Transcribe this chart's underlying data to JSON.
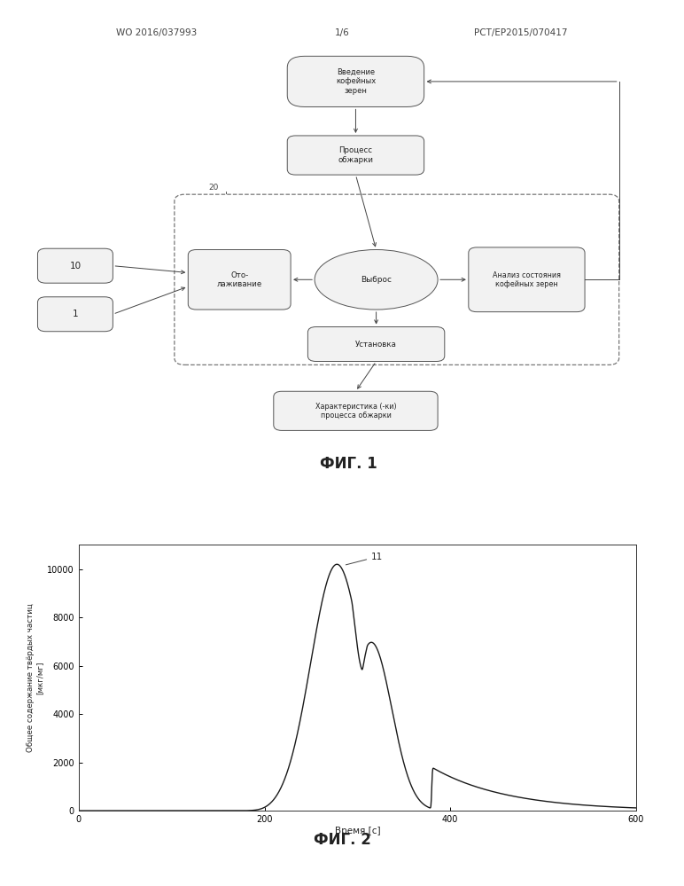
{
  "page_header_left": "WO 2016/037993",
  "page_header_right": "PCT/EP2015/070417",
  "page_number": "1/6",
  "fig1_label": "ФИГ. 1",
  "fig2_label": "ФИГ. 2",
  "box_vvedenie": "Введение\nкофейных\nзерен",
  "box_process": "Процесс\nобжарки",
  "box_ohlazh": "Ото-\nлаживание",
  "ellipse_vybros": "Выброс",
  "box_analiz": "Анализ состояния\nкофейных зерен",
  "box_ustanovka": "Установка",
  "box_kharakt": "Характеристика (-ки)\nпроцесса обжарки",
  "box_10": "10",
  "box_1": "1",
  "label_20": "20",
  "label_11": "11",
  "xlabel": "Время [c]",
  "ylabel_line1": "Общее содержание твёрдых частиц",
  "ylabel_line2": "[мкг/мг]",
  "xlim": [
    0,
    600
  ],
  "ylim": [
    0,
    11000
  ],
  "xticks": [
    0,
    200,
    400,
    600
  ],
  "yticks": [
    0,
    2000,
    4000,
    6000,
    8000,
    10000
  ],
  "bg_color": "#ffffff",
  "line_color": "#1a1a1a",
  "box_fc": "#f2f2f2",
  "box_ec": "#555555",
  "dashed_ec": "#777777"
}
